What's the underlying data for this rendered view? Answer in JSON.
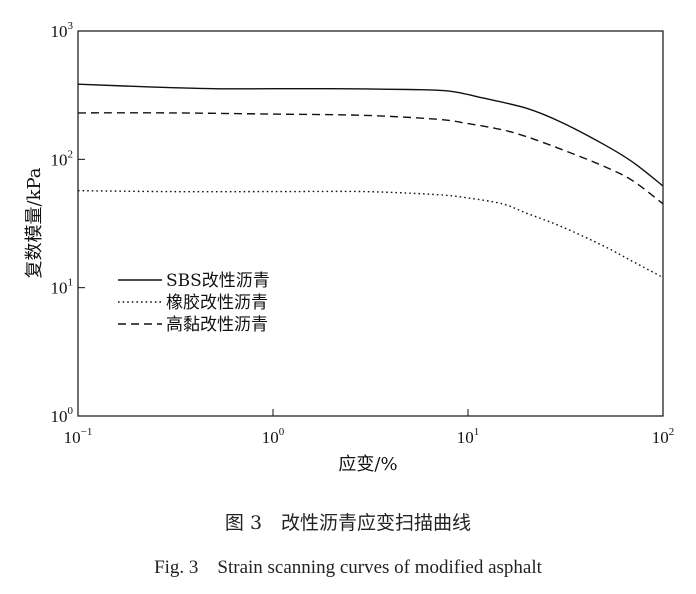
{
  "chart_data": {
    "type": "line",
    "xscale": "log",
    "yscale": "log",
    "xlim": [
      0.1,
      100
    ],
    "ylim": [
      1,
      1000
    ],
    "xlabel": "应变/%",
    "ylabel": "复数模量/kPa",
    "x_ticks": [
      {
        "value": 0.1,
        "base": "10",
        "exp": "−1"
      },
      {
        "value": 1,
        "base": "10",
        "exp": "0"
      },
      {
        "value": 10,
        "base": "10",
        "exp": "1"
      },
      {
        "value": 100,
        "base": "10",
        "exp": "2"
      }
    ],
    "y_ticks": [
      {
        "value": 1,
        "base": "10",
        "exp": "0"
      },
      {
        "value": 10,
        "base": "10",
        "exp": "1"
      },
      {
        "value": 100,
        "base": "10",
        "exp": "2"
      },
      {
        "value": 1000,
        "base": "10",
        "exp": "3"
      }
    ],
    "legend_position": "left-middle",
    "grid": false,
    "series": [
      {
        "name": "SBS改性沥青",
        "line_style": "solid",
        "x": [
          0.1,
          0.2,
          0.5,
          1,
          2,
          5,
          8,
          12,
          20,
          30,
          50,
          70,
          100
        ],
        "y": [
          385,
          370,
          355,
          355,
          355,
          350,
          340,
          300,
          250,
          195,
          130,
          95,
          62
        ]
      },
      {
        "name": "橡胶改性沥青",
        "line_style": "dotted",
        "x": [
          0.1,
          0.3,
          1,
          3,
          7,
          10,
          15,
          20,
          30,
          50,
          70,
          100
        ],
        "y": [
          57,
          56,
          56,
          56,
          53,
          50,
          45,
          38,
          30,
          21,
          16,
          12
        ]
      },
      {
        "name": "高黏改性沥青",
        "line_style": "dashed",
        "x": [
          0.1,
          0.3,
          1,
          3,
          7,
          10,
          15,
          20,
          30,
          50,
          70,
          100
        ],
        "y": [
          230,
          230,
          225,
          220,
          205,
          190,
          170,
          150,
          120,
          88,
          68,
          45
        ]
      }
    ]
  },
  "caption": {
    "cn": "图 3　改性沥青应变扫描曲线",
    "en": "Fig. 3　Strain scanning curves of modified asphalt"
  }
}
